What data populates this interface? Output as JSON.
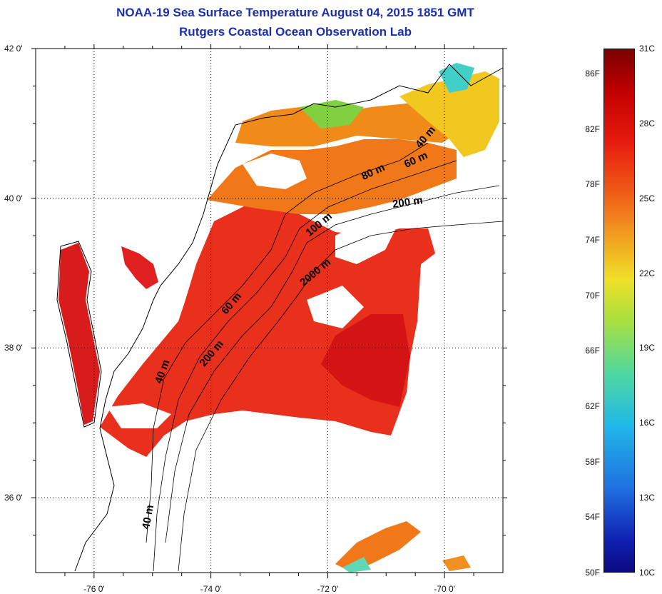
{
  "title": {
    "line1": "NOAA-19 Sea Surface Temperature August 04, 2015 1851 GMT",
    "line2": "Rutgers Coastal Ocean Observation Lab"
  },
  "map": {
    "lat_ticks": [
      {
        "value": 42,
        "label": "42 0'"
      },
      {
        "value": 40,
        "label": "40 0'"
      },
      {
        "value": 38,
        "label": "38 0'"
      },
      {
        "value": 36,
        "label": "36 0'"
      }
    ],
    "lon_ticks": [
      {
        "value": -76,
        "label": "-76 0'"
      },
      {
        "value": -74,
        "label": "-74 0'"
      },
      {
        "value": -72,
        "label": "-72 0'"
      },
      {
        "value": -70,
        "label": "-70 0'"
      }
    ],
    "isobath_labels": [
      "40 m",
      "60 m",
      "80 m",
      "200 m",
      "100 m",
      "2000 m",
      "60 m",
      "200 m",
      "40 m",
      "40 m"
    ],
    "colors": {
      "warm": "#e8281c",
      "hot": "#d41414",
      "orange": "#f07818",
      "yellow": "#f0d820",
      "green": "#80d040",
      "cyan": "#40d0d0"
    }
  },
  "colorbar": {
    "min_c": 10,
    "max_c": 31,
    "fahrenheit_labels": [
      "86F",
      "82F",
      "78F",
      "74F",
      "70F",
      "66F",
      "62F",
      "58F",
      "54F",
      "50F"
    ],
    "celsius_labels": [
      "31C",
      "28C",
      "25C",
      "22C",
      "19C",
      "16C",
      "13C",
      "10C"
    ]
  }
}
